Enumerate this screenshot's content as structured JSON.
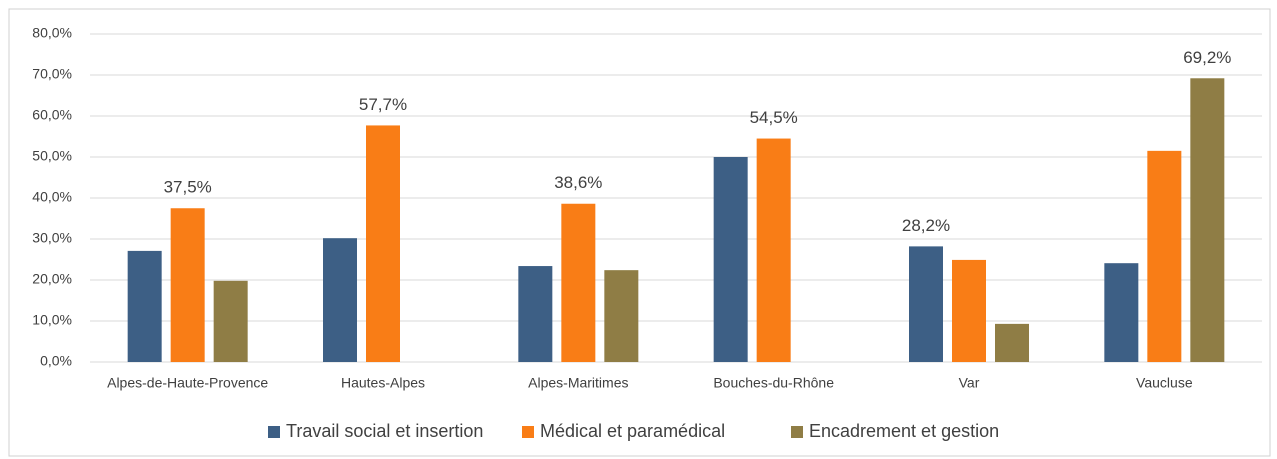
{
  "chart_data": {
    "type": "bar",
    "categories": [
      "Alpes-de-Haute-Provence",
      "Hautes-Alpes",
      "Alpes-Maritimes",
      "Bouches-du-Rhône",
      "Var",
      "Vaucluse"
    ],
    "series": [
      {
        "name": "Travail social et insertion",
        "color": "#3d5f85",
        "values": [
          27.1,
          30.2,
          23.4,
          50.0,
          28.2,
          24.1
        ],
        "value_labels": [
          null,
          null,
          null,
          null,
          "28,2%",
          null
        ]
      },
      {
        "name": "Médical et paramédical",
        "color": "#f97d16",
        "values": [
          37.5,
          57.7,
          38.6,
          54.5,
          24.9,
          51.5
        ],
        "value_labels": [
          "37,5%",
          "57,7%",
          "38,6%",
          "54,5%",
          null,
          null
        ]
      },
      {
        "name": "Encadrement et gestion",
        "color": "#8f7d45",
        "values": [
          19.8,
          null,
          22.4,
          null,
          9.3,
          69.2
        ],
        "value_labels": [
          null,
          null,
          null,
          null,
          null,
          "69,2%"
        ]
      }
    ],
    "ylim": [
      0,
      80
    ],
    "yticks": [
      {
        "value": 0,
        "label": "0,0%"
      },
      {
        "value": 10,
        "label": "10,0%"
      },
      {
        "value": 20,
        "label": "20,0%"
      },
      {
        "value": 30,
        "label": "30,0%"
      },
      {
        "value": 40,
        "label": "40,0%"
      },
      {
        "value": 50,
        "label": "50,0%"
      },
      {
        "value": 60,
        "label": "60,0%"
      },
      {
        "value": 70,
        "label": "70,0%"
      },
      {
        "value": 80,
        "label": "80,0%"
      }
    ],
    "grid": true,
    "legend": "bottom"
  }
}
